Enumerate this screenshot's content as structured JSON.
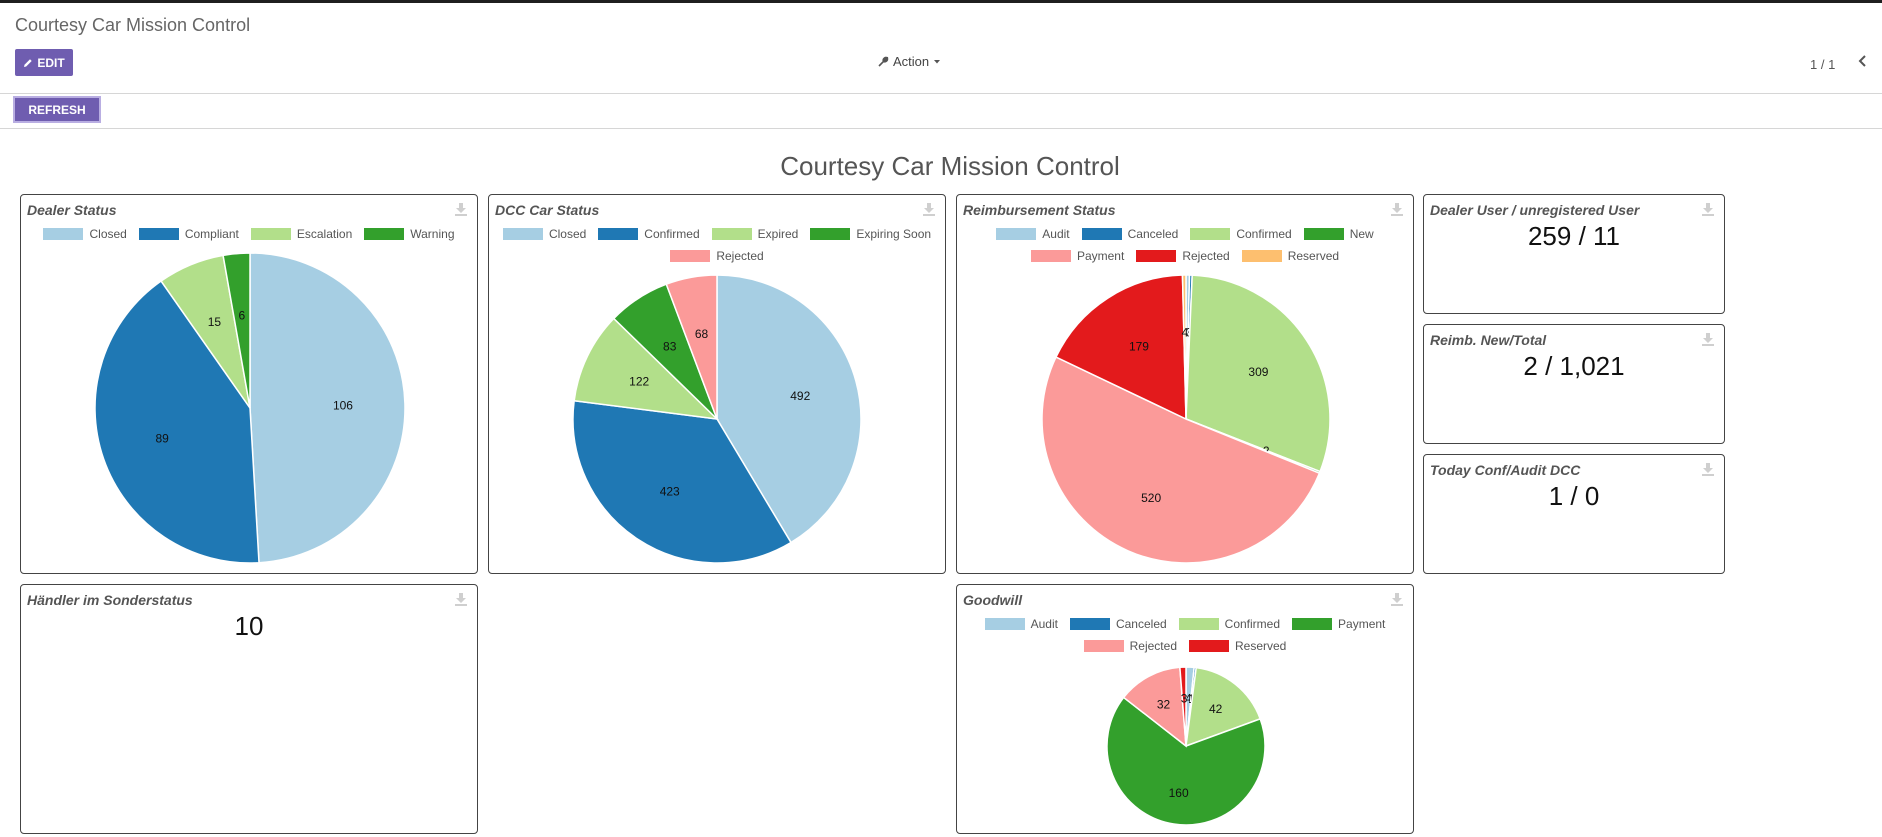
{
  "header": {
    "breadcrumb": "Courtesy Car Mission Control",
    "edit_label": "EDIT",
    "action_label": "Action",
    "pager": "1 / 1",
    "refresh_label": "REFRESH"
  },
  "dashboard_title": "Courtesy Car Mission Control",
  "colors": {
    "brand_button": "#6f5db0",
    "light_blue": "#a6cee3",
    "dark_blue": "#1f78b4",
    "light_green": "#b2df8a",
    "dark_green": "#33a02c",
    "pink": "#fb9a99",
    "red": "#e31a1c",
    "orange": "#fdbf6f"
  },
  "cards": {
    "dealer_status": {
      "title": "Dealer Status"
    },
    "dcc_car_status": {
      "title": "DCC Car Status"
    },
    "reimbursement_status": {
      "title": "Reimbursement Status"
    },
    "goodwill": {
      "title": "Goodwill"
    },
    "dealer_user": {
      "title": "Dealer User / unregistered User",
      "value": "259 / 11"
    },
    "reimb_new_total": {
      "title": "Reimb. New/Total",
      "value": "2 / 1,021"
    },
    "today_conf_audit": {
      "title": "Today Conf/Audit DCC",
      "value": "1 / 0"
    },
    "haendler_sonderstatus": {
      "title": "Händler im Sonderstatus",
      "value": "10"
    }
  },
  "chart_data": [
    {
      "id": "dealer_status",
      "type": "pie",
      "title": "Dealer Status",
      "legend_placement": "top",
      "categories": [
        "Closed",
        "Compliant",
        "Escalation",
        "Warning"
      ],
      "values": [
        106,
        89,
        15,
        6
      ],
      "colors": [
        "#a6cee3",
        "#1f78b4",
        "#b2df8a",
        "#33a02c"
      ]
    },
    {
      "id": "dcc_car_status",
      "type": "pie",
      "title": "DCC Car Status",
      "legend_placement": "top",
      "categories": [
        "Closed",
        "Confirmed",
        "Expired",
        "Expiring Soon",
        "Rejected"
      ],
      "values": [
        492,
        423,
        122,
        83,
        68
      ],
      "colors": [
        "#a6cee3",
        "#1f78b4",
        "#b2df8a",
        "#33a02c",
        "#fb9a99"
      ]
    },
    {
      "id": "reimbursement_status",
      "type": "pie",
      "title": "Reimbursement Status",
      "legend_placement": "top",
      "categories": [
        "Audit",
        "Canceled",
        "Confirmed",
        "New",
        "Payment",
        "Rejected",
        "Reserved"
      ],
      "values": [
        4,
        3,
        309,
        2,
        520,
        179,
        4
      ],
      "colors": [
        "#a6cee3",
        "#1f78b4",
        "#b2df8a",
        "#33a02c",
        "#fb9a99",
        "#e31a1c",
        "#fdbf6f"
      ]
    },
    {
      "id": "goodwill",
      "type": "pie",
      "title": "Goodwill",
      "legend_placement": "top",
      "categories": [
        "Audit",
        "Canceled",
        "Confirmed",
        "Payment",
        "Rejected",
        "Reserved"
      ],
      "values": [
        4,
        1,
        42,
        160,
        32,
        3
      ],
      "colors": [
        "#a6cee3",
        "#1f78b4",
        "#b2df8a",
        "#33a02c",
        "#fb9a99",
        "#e31a1c"
      ]
    }
  ]
}
